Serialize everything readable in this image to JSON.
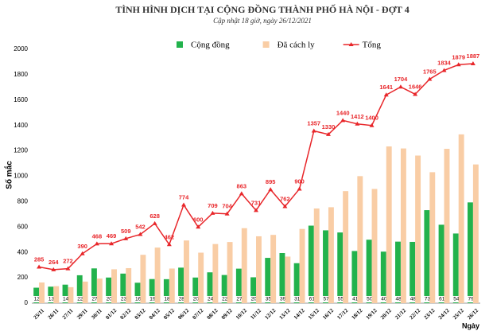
{
  "chart_data": {
    "type": "bar-line",
    "title": "TÌNH HÌNH DỊCH TẠI CỘNG ĐỒNG THÀNH PHỐ HÀ NỘI - ĐỢT 4",
    "subtitle": "Cập nhật 18 giờ, ngày 26/12/2021",
    "y_label": "Số mắc",
    "x_label": "Ngày",
    "categories": [
      "25/11",
      "26/11",
      "27/11",
      "29/11",
      "30/11",
      "01/12",
      "02/12",
      "03/12",
      "04/12",
      "05/12",
      "06/12",
      "07/12",
      "08/12",
      "09/12",
      "10/12",
      "11/12",
      "12/12",
      "13/12",
      "14/12",
      "15/12",
      "16/12",
      "17/12",
      "18/12",
      "19/12",
      "20/12",
      "21/12",
      "22/12",
      "23/12",
      "24/12",
      "25/12",
      "26/12"
    ],
    "series": [
      {
        "name": "Cộng đồng",
        "color": "#22b24c",
        "kind": "bar",
        "values": [
          122,
          130,
          146,
          220,
          274,
          202,
          233,
          161,
          190,
          189,
          280,
          202,
          243,
          222,
          272,
          204,
          357,
          395,
          315,
          611,
          574,
          557,
          411,
          500,
          406,
          485,
          483,
          733,
          618,
          549,
          794
        ]
      },
      {
        "name": "Đã cách ly",
        "color": "#f9cda5",
        "kind": "bar",
        "values": [
          163,
          134,
          126,
          170,
          194,
          267,
          276,
          381,
          438,
          273,
          494,
          398,
          466,
          482,
          591,
          527,
          538,
          367,
          585,
          746,
          756,
          883,
          1001,
          900,
          1235,
          1219,
          1163,
          1032,
          1216,
          1330,
          1093
        ]
      },
      {
        "name": "Tổng",
        "color": "#e8262a",
        "kind": "line",
        "values": [
          285,
          264,
          272,
          390,
          468,
          469,
          509,
          542,
          628,
          462,
          774,
          600,
          709,
          704,
          863,
          731,
          895,
          762,
          900,
          1357,
          1330,
          1440,
          1412,
          1400,
          1641,
          1704,
          1646,
          1765,
          1834,
          1879,
          1887
        ]
      }
    ],
    "ylim": [
      0,
      2000
    ],
    "yticks": [
      0,
      200,
      400,
      600,
      800,
      1000,
      1200,
      1400,
      1600,
      1800,
      2000
    ],
    "grid": false
  }
}
